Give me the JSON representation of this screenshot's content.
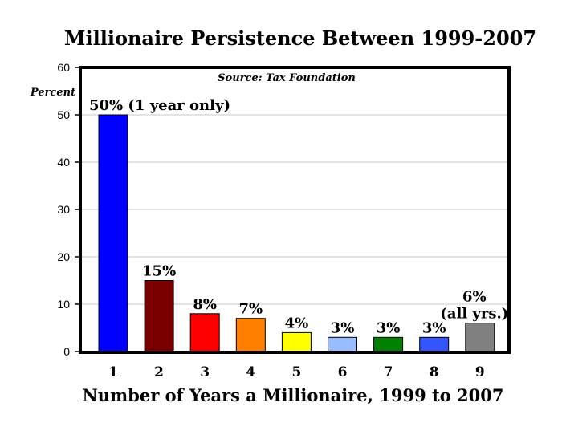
{
  "chart_data": {
    "type": "bar",
    "title": "Millionaire Persistence Between 1999-2007",
    "source": "Source: Tax Foundation",
    "ylabel": "Percent",
    "xlabel": "Number of Years a Millionaire, 1999 to 2007",
    "ylim": [
      0,
      60
    ],
    "yticks": [
      "0",
      "10",
      "20",
      "30",
      "40",
      "50",
      "60"
    ],
    "grid": true,
    "categories": [
      "1",
      "2",
      "3",
      "4",
      "5",
      "6",
      "7",
      "8",
      "9"
    ],
    "values": [
      50,
      15,
      8,
      7,
      4,
      3,
      3,
      3,
      6
    ],
    "labels": [
      [
        "50% (1 year only)"
      ],
      [
        "15%"
      ],
      [
        "8%"
      ],
      [
        "7%"
      ],
      [
        "4%"
      ],
      [
        "3%"
      ],
      [
        "3%"
      ],
      [
        "3%"
      ],
      [
        "6%",
        "(all yrs.)"
      ]
    ],
    "colors": [
      "#0000ff",
      "#7a0000",
      "#ff0000",
      "#ff8000",
      "#ffff00",
      "#99bbff",
      "#008000",
      "#3355ff",
      "#808080"
    ]
  }
}
